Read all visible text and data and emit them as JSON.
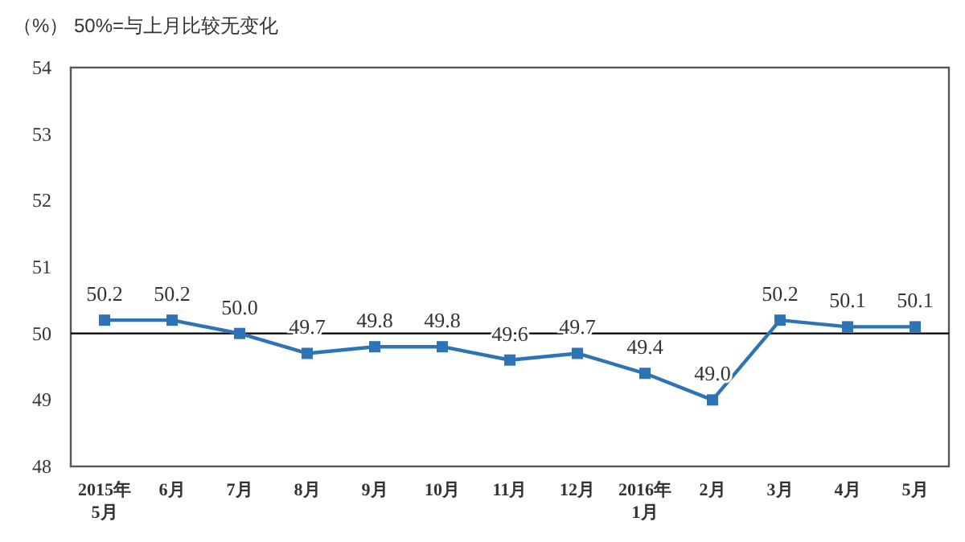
{
  "chart_data": {
    "type": "line",
    "ylabel": "（%）",
    "annotations": [
      "50%=与上月比较无变化"
    ],
    "categories": [
      "2015年\n5月",
      "6月",
      "7月",
      "8月",
      "9月",
      "10月",
      "11月",
      "12月",
      "2016年\n1月",
      "2月",
      "3月",
      "4月",
      "5月"
    ],
    "series": [
      {
        "color": "#2e74b5",
        "values": [
          50.2,
          50.2,
          50.0,
          49.7,
          49.8,
          49.8,
          49.6,
          49.7,
          49.4,
          49.0,
          50.2,
          50.1,
          50.1
        ],
        "value_labels": [
          "50.2",
          "50.2",
          "50.0",
          "49.7",
          "49.8",
          "49.8",
          "49.6",
          "49.7",
          "49.4",
          "49.0",
          "50.2",
          "50.1",
          "50.1"
        ]
      }
    ],
    "ylim": [
      48,
      54
    ],
    "yticks": [
      48,
      49,
      50,
      51,
      52,
      53,
      54
    ],
    "ref_lines": [
      {
        "axis": "y",
        "value": 50,
        "color": "#000000"
      }
    ],
    "marker": "square",
    "line_style": "solid",
    "grid": false
  }
}
